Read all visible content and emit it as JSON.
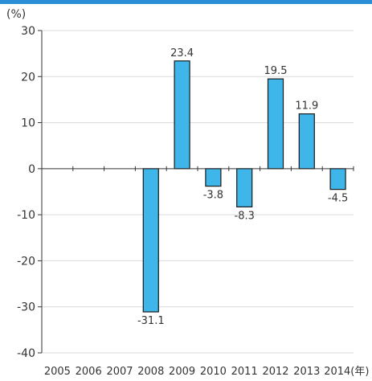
{
  "chart_data": {
    "type": "bar",
    "categories": [
      "2005",
      "2006",
      "2007",
      "2008",
      "2009",
      "2010",
      "2011",
      "2012",
      "2013",
      "2014(年)"
    ],
    "values": [
      0,
      0,
      0,
      -31.1,
      23.4,
      -3.8,
      -8.3,
      19.5,
      11.9,
      -4.5
    ],
    "data_labels": [
      "",
      "",
      "",
      "-31.1",
      "23.4",
      "-3.8",
      "-8.3",
      "19.5",
      "11.9",
      "-4.5"
    ],
    "y_unit": "(%)",
    "ylim": [
      -40,
      30
    ],
    "yticks": [
      "30",
      "20",
      "10",
      "0",
      "-10",
      "-20",
      "-30",
      "-40"
    ],
    "grid": true,
    "bar_color": "#3fb6ea",
    "bar_edge_color": "#1a1a1a",
    "grid_color": "#d9d9d9",
    "accent_color": "#2a8fd6"
  }
}
